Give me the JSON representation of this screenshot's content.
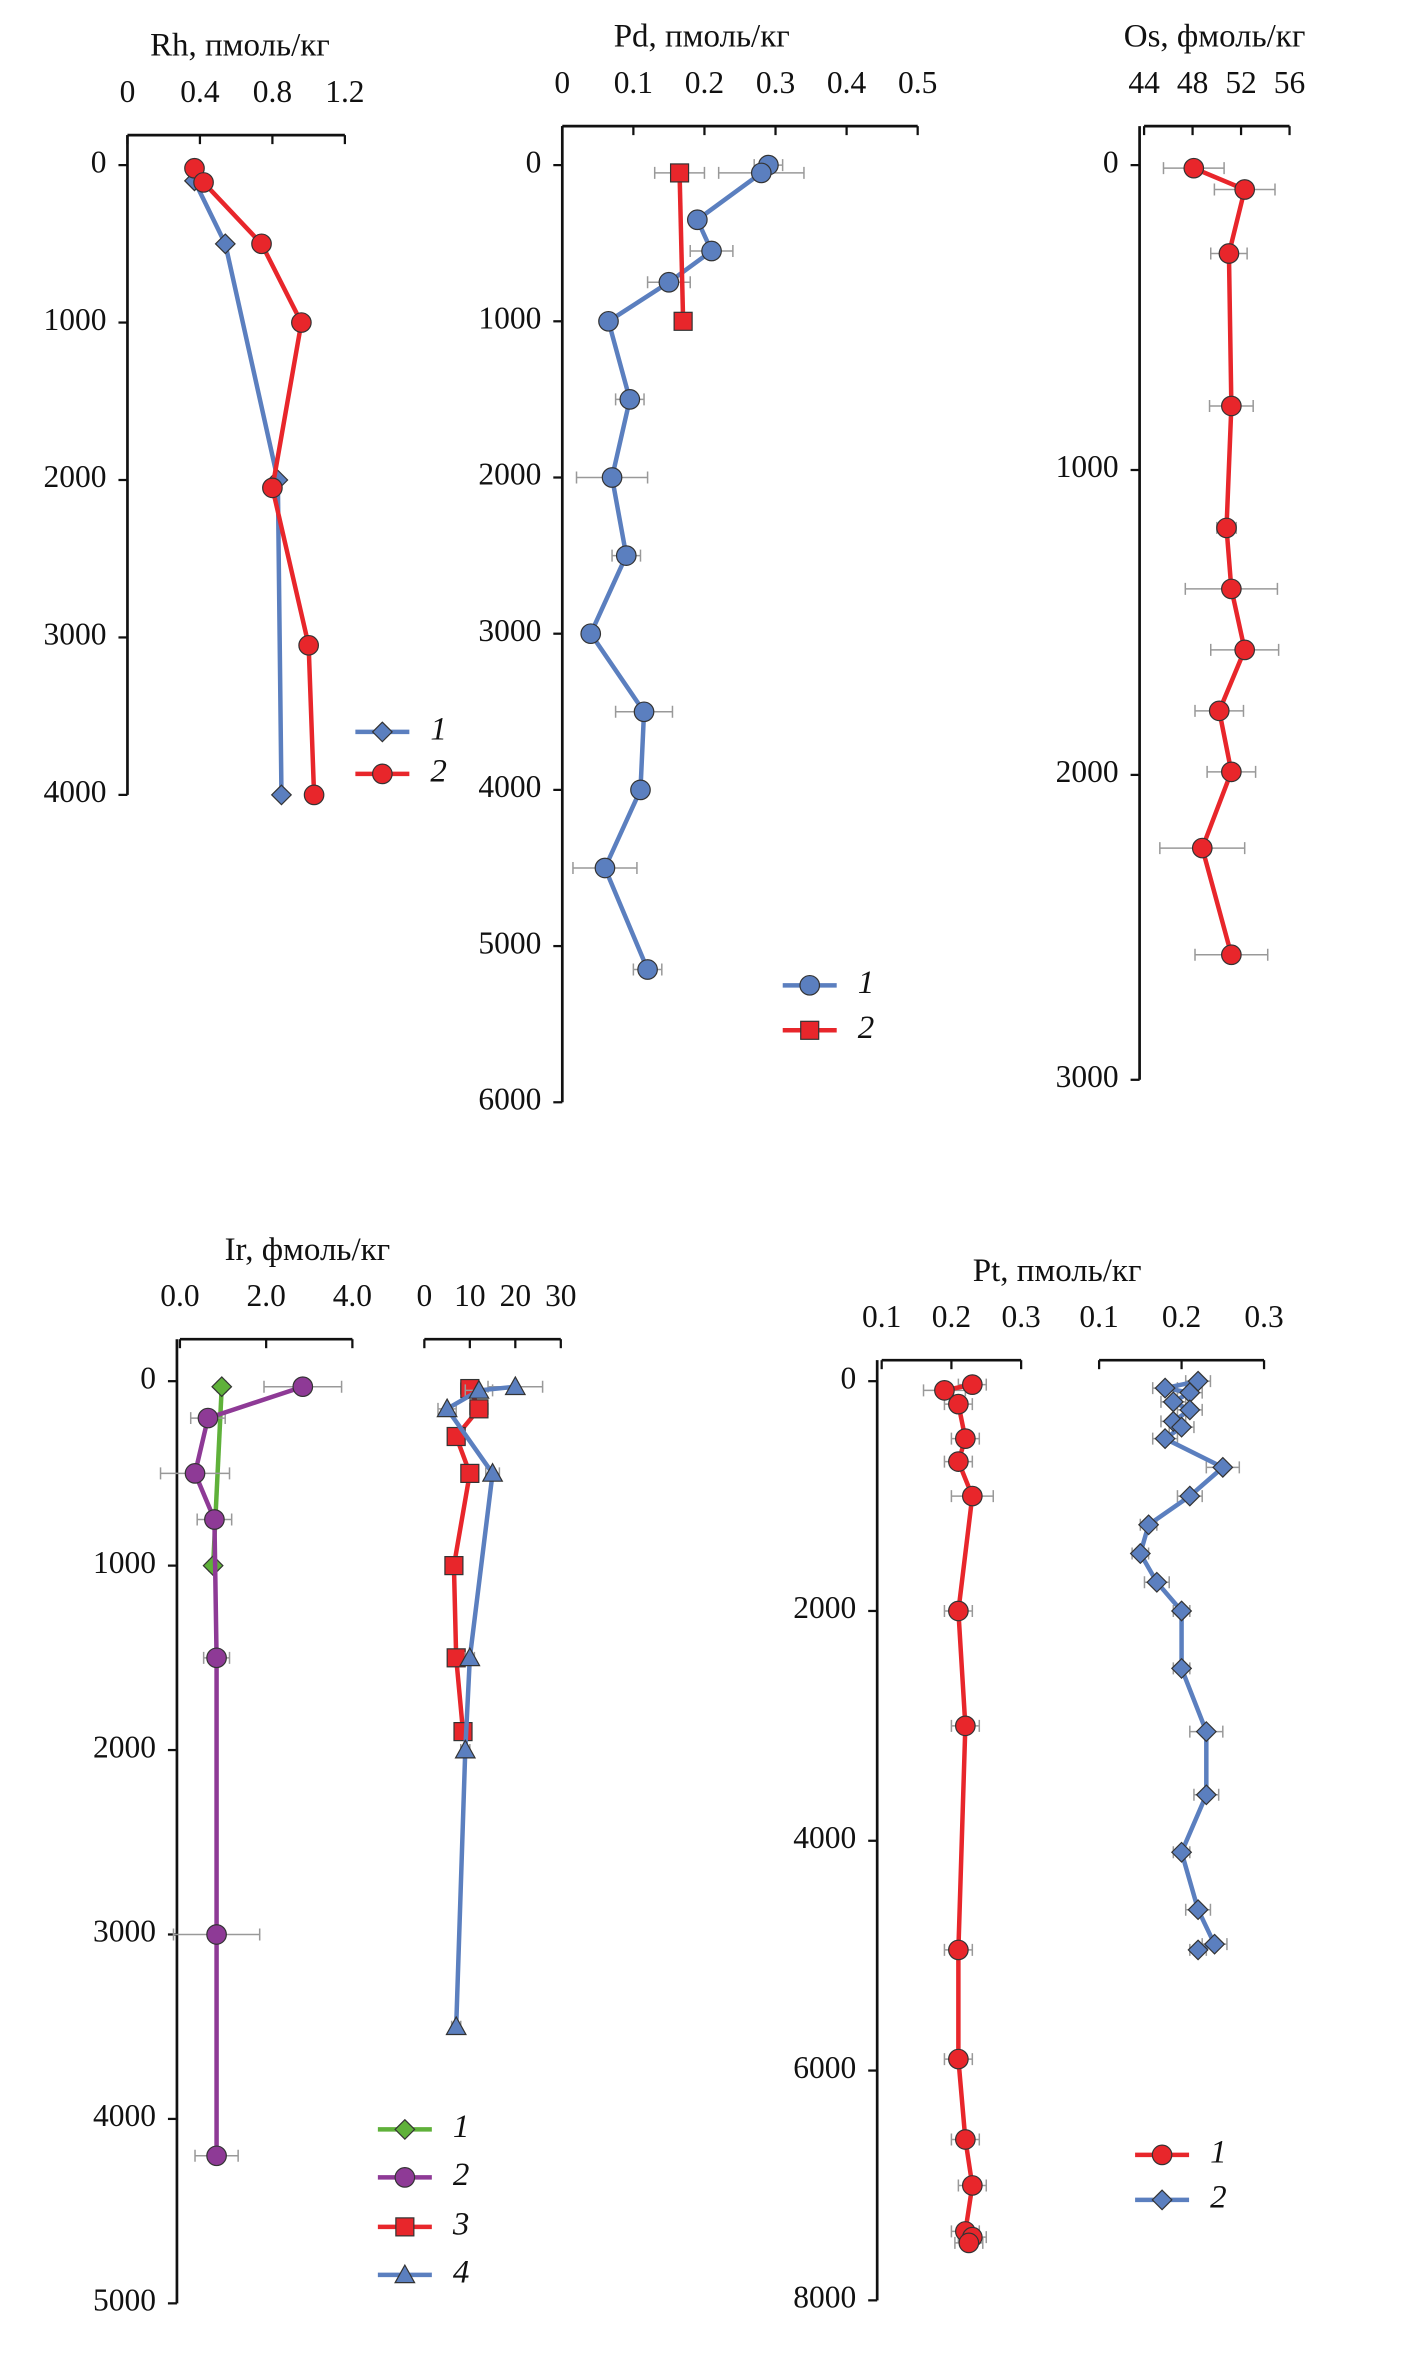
{
  "chart_data": [
    {
      "type": "line",
      "title": "Rh, пмоль/кг",
      "xlim": [
        0,
        1.2
      ],
      "xticks": [
        0,
        0.4,
        0.8,
        1.2
      ],
      "ylim": [
        0,
        4000
      ],
      "yticks": [
        0,
        1000,
        2000,
        3000,
        4000
      ],
      "series": [
        {
          "name": "1",
          "color": "#5b7fbf",
          "marker": "diamond",
          "x": [
            0.37,
            0.54,
            0.83,
            0.85
          ],
          "y": [
            100,
            500,
            2000,
            4000
          ]
        },
        {
          "name": "2",
          "color": "#e8262b",
          "marker": "circle",
          "x": [
            0.37,
            0.42,
            0.74,
            0.96,
            0.8,
            1.0,
            1.03
          ],
          "y": [
            20,
            110,
            500,
            1000,
            2050,
            3050,
            4000
          ]
        }
      ]
    },
    {
      "type": "line",
      "title": "Pd, пмоль/кг",
      "xlim": [
        0,
        0.5
      ],
      "xticks": [
        0,
        0.1,
        0.2,
        0.3,
        0.4,
        0.5
      ],
      "ylim": [
        0,
        6000
      ],
      "yticks": [
        0,
        1000,
        2000,
        3000,
        4000,
        5000,
        6000
      ],
      "series": [
        {
          "name": "1",
          "color": "#5b7fbf",
          "marker": "circle",
          "x": [
            0.29,
            0.28,
            0.19,
            0.21,
            0.15,
            0.065,
            0.095,
            0.07,
            0.09,
            0.04,
            0.115,
            0.11,
            0.06,
            0.12
          ],
          "y": [
            0,
            50,
            350,
            550,
            750,
            1000,
            1500,
            2000,
            2500,
            3000,
            3500,
            4000,
            4500,
            5150
          ],
          "xerr": [
            0.02,
            0.06,
            0.01,
            0.03,
            0.03,
            0.01,
            0.02,
            0.05,
            0.02,
            0.01,
            0.04,
            0.01,
            0.045,
            0.02
          ]
        },
        {
          "name": "2",
          "color": "#e8262b",
          "marker": "square",
          "x": [
            0.165,
            0.17
          ],
          "y": [
            50,
            1000
          ],
          "xerr": [
            0.035,
            0.01
          ]
        }
      ]
    },
    {
      "type": "line",
      "title": "Os, фмоль/кг",
      "xlim": [
        44,
        56
      ],
      "xticks": [
        44,
        48,
        52,
        56
      ],
      "ylim": [
        0,
        3000
      ],
      "yticks": [
        0,
        1000,
        2000,
        3000
      ],
      "series": [
        {
          "color": "#e8262b",
          "marker": "circle",
          "x": [
            48.1,
            52.3,
            51,
            51.2,
            50.8,
            51.2,
            52.3,
            50.2,
            51.2,
            48.8,
            51.2
          ],
          "y": [
            10,
            80,
            290,
            790,
            1190,
            1390,
            1590,
            1790,
            1990,
            2240,
            2590
          ],
          "xerr": [
            2.5,
            2.5,
            1.5,
            1.8,
            0.8,
            3.8,
            2.8,
            2,
            2,
            3.5,
            3
          ]
        }
      ]
    },
    {
      "type": "line",
      "title": "Ir, фмоль/кг",
      "xlim": [
        0,
        4
      ],
      "xticks": [
        {
          "value": 0,
          "label": "0.0"
        },
        {
          "value": 2,
          "label": "2.0"
        },
        {
          "value": 4,
          "label": "4.0"
        }
      ],
      "ylim": [
        0,
        5000
      ],
      "yticks": [
        0,
        1000,
        2000,
        3000,
        4000,
        5000
      ],
      "series": [
        {
          "name": "1",
          "color": "#5fb13a",
          "marker": "diamond",
          "x": [
            0.97,
            0.77
          ],
          "y": [
            30,
            1000
          ],
          "xerr": [
            0.1,
            0.1
          ]
        },
        {
          "name": "2",
          "color": "#8e3a96",
          "marker": "circle",
          "x": [
            2.85,
            0.65,
            0.35,
            0.8,
            0.85,
            0.85,
            0.85
          ],
          "y": [
            30,
            200,
            500,
            750,
            1500,
            3000,
            4200
          ],
          "xerr": [
            0.9,
            0.4,
            0.8,
            0.4,
            0.3,
            1.0,
            0.5
          ]
        }
      ]
    },
    {
      "type": "line",
      "xlim": [
        0,
        30
      ],
      "xticks": [
        0,
        10,
        20,
        30
      ],
      "ylim": [
        0,
        5000
      ],
      "series": [
        {
          "name": "3",
          "color": "#e8262b",
          "marker": "square",
          "x": [
            10,
            12,
            7,
            10,
            6.5,
            7,
            8.5
          ],
          "y": [
            40,
            150,
            300,
            500,
            1000,
            1500,
            1900
          ],
          "xerr": [
            2,
            2,
            1.5,
            1.5,
            1,
            1,
            1
          ]
        },
        {
          "name": "4",
          "color": "#5b7fbf",
          "marker": "triangle",
          "x": [
            20,
            12,
            5,
            15,
            10,
            9,
            7
          ],
          "y": [
            30,
            50,
            150,
            500,
            1500,
            2000,
            3500
          ],
          "xerr": [
            6,
            3,
            2,
            1.5,
            1,
            1,
            1
          ]
        }
      ]
    },
    {
      "type": "line",
      "title": "Pt, пмоль/кг",
      "xlim": [
        0.1,
        0.3
      ],
      "xticks": [
        0.1,
        0.2,
        0.3
      ],
      "ylim": [
        0,
        8000
      ],
      "yticks": [
        0,
        2000,
        4000,
        6000,
        8000
      ],
      "series": [
        {
          "name": "1",
          "color": "#e8262b",
          "marker": "circle",
          "x": [
            0.23,
            0.19,
            0.21,
            0.22,
            0.21,
            0.23,
            0.21,
            0.22,
            0.21,
            0.21,
            0.22,
            0.23,
            0.22,
            0.23,
            0.225
          ],
          "y": [
            30,
            80,
            200,
            500,
            700,
            1000,
            2000,
            3000,
            4950,
            5900,
            6600,
            7000,
            7400,
            7450,
            7500
          ],
          "xerr": [
            0.02,
            0.03,
            0.02,
            0.02,
            0.02,
            0.03,
            0.02,
            0.02,
            0.02,
            0.02,
            0.02,
            0.02,
            0.02,
            0.02,
            0.02
          ]
        }
      ]
    },
    {
      "type": "line",
      "xlim": [
        0.1,
        0.3
      ],
      "xticks": [
        0.1,
        0.2,
        0.3
      ],
      "ylim": [
        0,
        8000
      ],
      "series": [
        {
          "name": "2",
          "color": "#5b7fbf",
          "marker": "diamond",
          "x": [
            0.22,
            0.18,
            0.21,
            0.19,
            0.21,
            0.19,
            0.2,
            0.18,
            0.25,
            0.21,
            0.16,
            0.15,
            0.17,
            0.2,
            0.2,
            0.23,
            0.23,
            0.2,
            0.22,
            0.24,
            0.22
          ],
          "y": [
            0,
            60,
            100,
            180,
            250,
            350,
            400,
            500,
            750,
            1000,
            1250,
            1500,
            1750,
            2000,
            2500,
            3050,
            3600,
            4100,
            4600,
            4900,
            4950
          ],
          "xerr": [
            0.015,
            0.015,
            0.015,
            0.015,
            0.015,
            0.015,
            0.015,
            0.015,
            0.02,
            0.015,
            0.01,
            0.01,
            0.015,
            0.01,
            0.01,
            0.02,
            0.015,
            0.01,
            0.015,
            0.015,
            0.01
          ]
        }
      ]
    }
  ]
}
